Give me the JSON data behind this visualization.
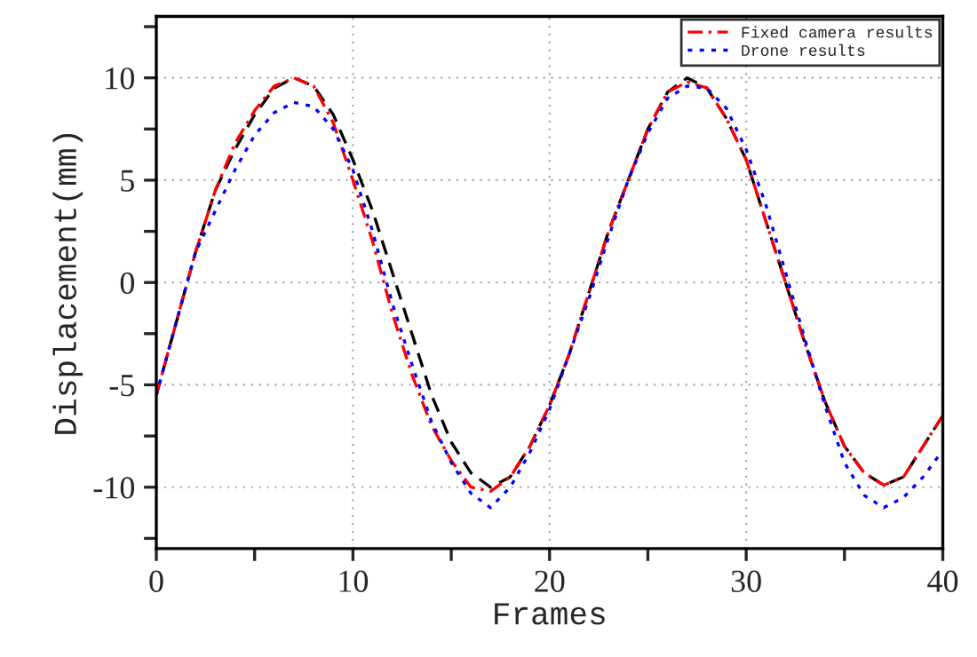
{
  "chart_data": {
    "type": "line",
    "xlabel": "Frames",
    "ylabel": "Displacement(mm)",
    "x": [
      0,
      1,
      2,
      3,
      4,
      5,
      6,
      7,
      8,
      9,
      10,
      11,
      12,
      13,
      14,
      15,
      16,
      17,
      18,
      19,
      20,
      21,
      22,
      23,
      24,
      25,
      26,
      27,
      28,
      29,
      30,
      31,
      32,
      33,
      34,
      35,
      36,
      37,
      38,
      39,
      40
    ],
    "series": [
      {
        "color": "#000000",
        "line_style": "dashed",
        "values": [
          -5.5,
          -2,
          1.5,
          4.5,
          6.5,
          8.2,
          9.5,
          10,
          9.6,
          8.2,
          6,
          3.5,
          0.5,
          -2.5,
          -5.5,
          -7.8,
          -9.3,
          -10,
          -9.5,
          -8,
          -6,
          -3.5,
          -0.5,
          2.5,
          5,
          7.5,
          9.3,
          10,
          9.5,
          8,
          6,
          3,
          0,
          -3,
          -5.8,
          -8,
          -9.3,
          -9.9,
          -9.5,
          -8,
          -6.5
        ]
      },
      {
        "name": "Fixed camera results",
        "color": "#ff0000",
        "line_style": "dashdot",
        "values": [
          -5.5,
          -2,
          1.5,
          4.5,
          6.8,
          8.4,
          9.6,
          10,
          9.6,
          7.8,
          5,
          2,
          -1.5,
          -4.5,
          -7,
          -8.7,
          -10,
          -10.2,
          -9.5,
          -8,
          -6,
          -3.5,
          -0.5,
          2.5,
          5,
          7.5,
          9.3,
          9.8,
          9.5,
          8,
          6,
          3,
          0,
          -3,
          -5.8,
          -8,
          -9.3,
          -9.9,
          -9.5,
          -8,
          -6.5
        ]
      },
      {
        "name": "Drone results",
        "color": "#0000ff",
        "line_style": "dotted",
        "values": [
          -5.5,
          -2,
          1.5,
          3.5,
          5.5,
          7.2,
          8.3,
          8.8,
          8.6,
          7.5,
          5.5,
          2.5,
          -1,
          -4,
          -6.8,
          -8.8,
          -10.3,
          -11,
          -10,
          -8.3,
          -6.2,
          -3.5,
          -0.8,
          2.2,
          5,
          7.3,
          9,
          9.6,
          9.5,
          8.5,
          6.5,
          3.8,
          0.5,
          -2.8,
          -6,
          -8.8,
          -10.4,
          -11,
          -10.5,
          -9.5,
          -8.2
        ]
      }
    ],
    "xlim": [
      0,
      40
    ],
    "xticks": [
      0,
      {
        "value": 5,
        "label": null
      },
      10,
      {
        "value": 15,
        "label": null
      },
      20,
      {
        "value": 25,
        "label": null
      },
      30,
      {
        "value": 35,
        "label": null
      },
      40
    ],
    "ylim": [
      -13,
      13
    ],
    "yticks": [
      {
        "value": -12.5,
        "label": null
      },
      -10,
      {
        "value": -7.5,
        "label": null
      },
      -5,
      {
        "value": -2.5,
        "label": null
      },
      0,
      {
        "value": 2.5,
        "label": null
      },
      5,
      {
        "value": 7.5,
        "label": null
      },
      10,
      {
        "value": 12.5,
        "label": null
      }
    ],
    "grid": true,
    "legend": "top right"
  }
}
